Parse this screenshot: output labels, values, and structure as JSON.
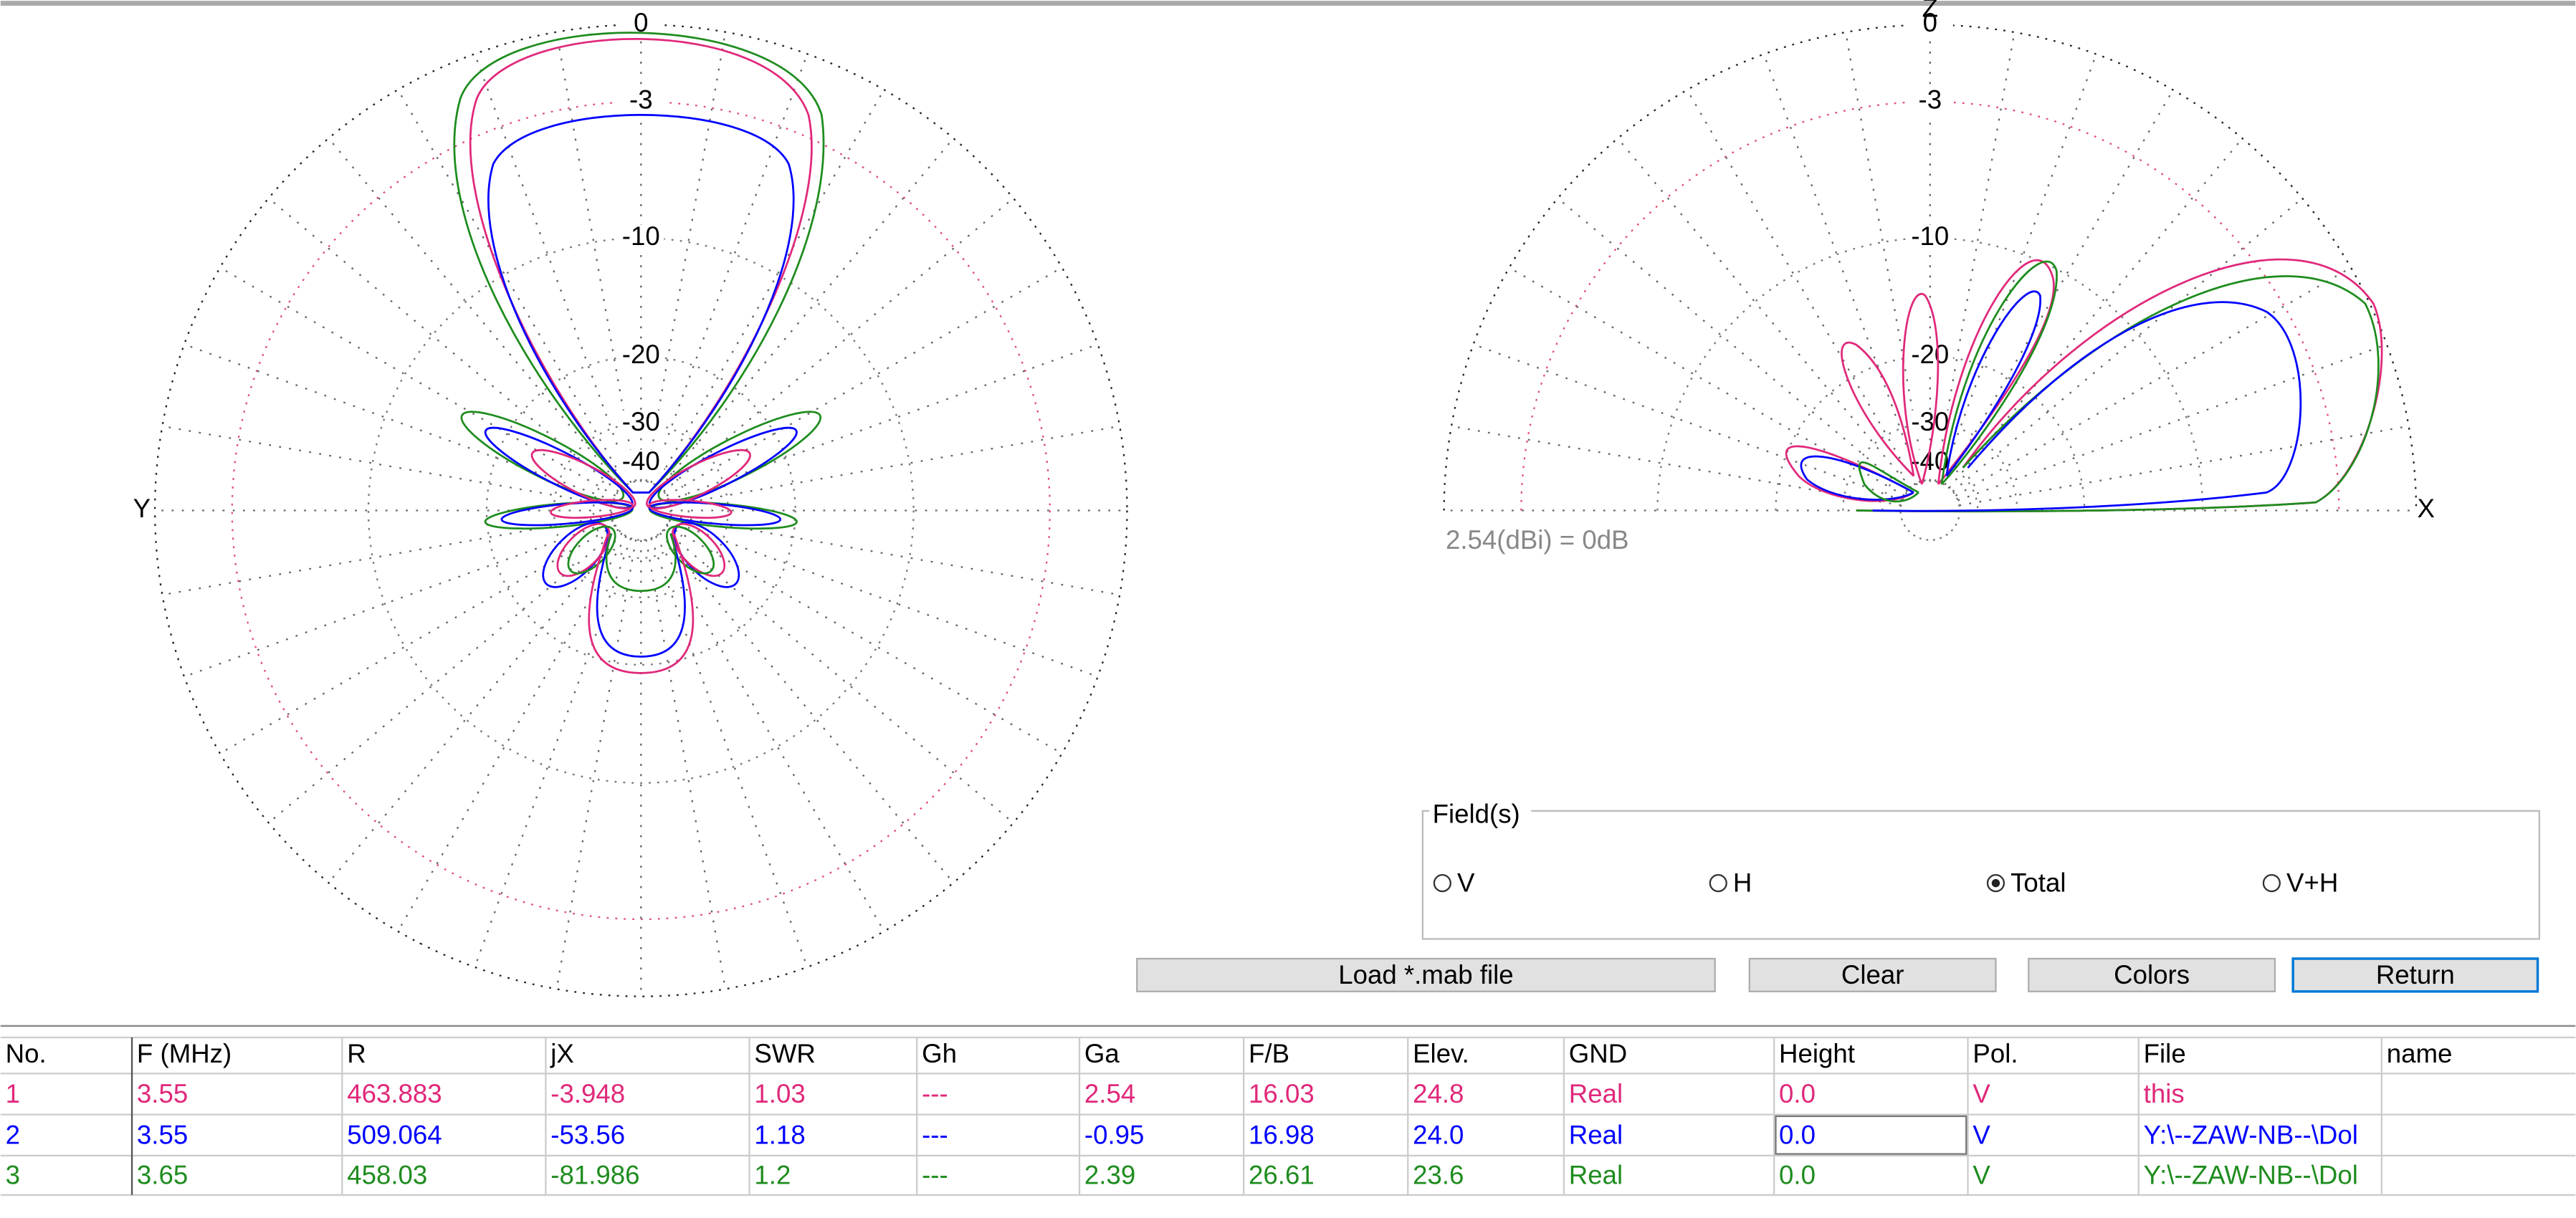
{
  "ring_labels": [
    "0",
    "-3",
    "-10",
    "-20",
    "-30",
    "-40"
  ],
  "left_plot": {
    "side_label": "Y"
  },
  "right_plot": {
    "top_label": "Z",
    "side_label": "X"
  },
  "reference_note": "2.54(dBi) = 0dB",
  "fields": {
    "title": "Field(s)",
    "options": [
      "V",
      "H",
      "Total",
      "V+H"
    ],
    "selected": 2
  },
  "buttons": [
    "Load *.mab file",
    "Clear",
    "Colors",
    "Return"
  ],
  "table": {
    "headers": [
      "No.",
      "F (MHz)",
      "R",
      "jX",
      "SWR",
      "Gh",
      "Ga",
      "F/B",
      "Elev.",
      "GND",
      "Height",
      "Pol.",
      "File",
      "name"
    ],
    "row_colors": [
      "#e0287a",
      "#0000ff",
      "#1e8c1e"
    ],
    "rows": [
      [
        "1",
        "3.55",
        "463.883",
        "-3.948",
        "1.03",
        "---",
        "2.54",
        "16.03",
        "24.8",
        "Real",
        "0.0",
        "V",
        "this",
        ""
      ],
      [
        "2",
        "3.55",
        "509.064",
        "-53.56",
        "1.18",
        "---",
        "-0.95",
        "16.98",
        "24.0",
        "Real",
        "0.0",
        "V",
        "Y:\\--ZAW-NB--\\Dol",
        ""
      ],
      [
        "3",
        "3.65",
        "458.03",
        "-81.986",
        "1.2",
        "---",
        "2.39",
        "26.61",
        "23.6",
        "Real",
        "0.0",
        "V",
        "Y:\\--ZAW-NB--\\Dol",
        ""
      ]
    ]
  }
}
